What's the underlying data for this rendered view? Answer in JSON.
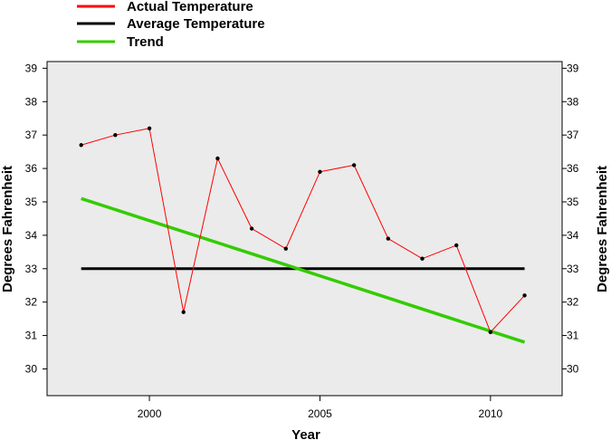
{
  "chart_data": {
    "type": "line",
    "xlabel": "Year",
    "ylabel": "Degrees Fahrenheit",
    "ylabel_right": "Degrees Fahrenheit",
    "xlim": [
      1997,
      2012.1
    ],
    "ylim": [
      29.2,
      39.2
    ],
    "x_ticks": [
      2000,
      2005,
      2010
    ],
    "y_ticks": [
      30,
      31,
      32,
      33,
      34,
      35,
      36,
      37,
      38,
      39
    ],
    "grid": false,
    "legend_position": "top-left, outside plot",
    "plot_background": "#ebebeb",
    "series": [
      {
        "name": "Actual Temperature",
        "color": "#ff0000",
        "markers": true,
        "x": [
          1998,
          1999,
          2000,
          2001,
          2002,
          2003,
          2004,
          2005,
          2006,
          2007,
          2008,
          2009,
          2010,
          2011
        ],
        "y": [
          36.7,
          37.0,
          37.2,
          31.7,
          36.3,
          34.2,
          33.6,
          35.9,
          36.1,
          33.9,
          33.3,
          33.7,
          31.1,
          32.2
        ]
      },
      {
        "name": "Average Temperature",
        "color": "#000000",
        "x": [
          1998,
          2011
        ],
        "y": [
          33.0,
          33.0
        ]
      },
      {
        "name": "Trend",
        "color": "#33cc00",
        "x": [
          1998,
          2011
        ],
        "y": [
          35.1,
          30.8
        ]
      }
    ]
  }
}
